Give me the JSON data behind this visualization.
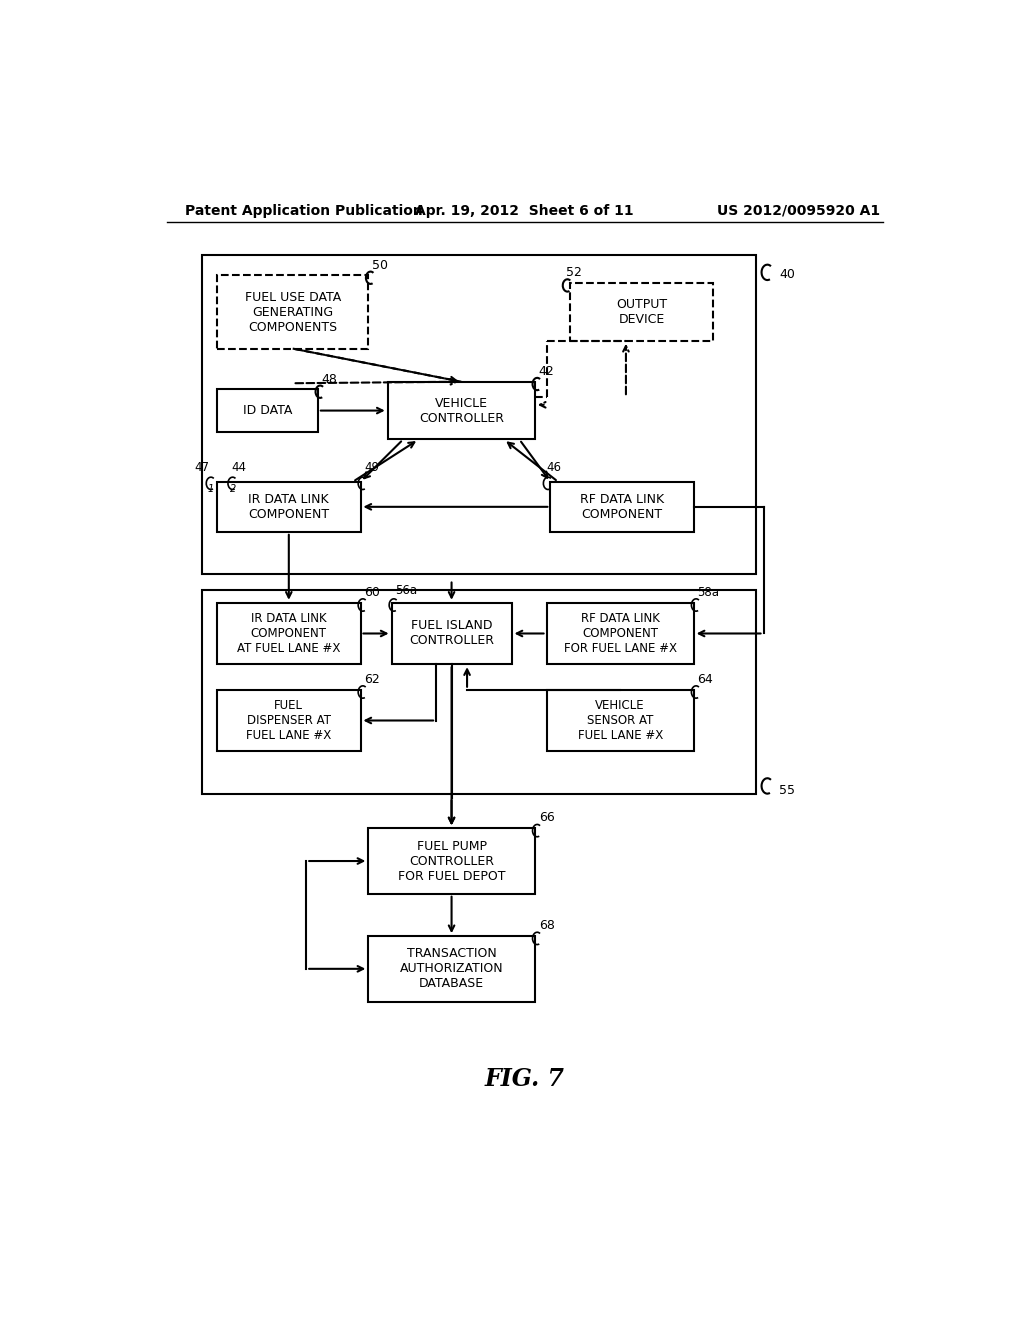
{
  "header_left": "Patent Application Publication",
  "header_center": "Apr. 19, 2012  Sheet 6 of 11",
  "header_right": "US 2012/0095920 A1",
  "fig_label": "FIG. 7",
  "background": "#ffffff"
}
